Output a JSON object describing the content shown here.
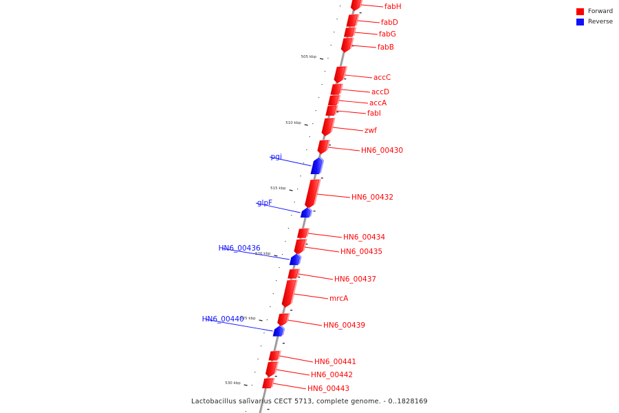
{
  "legend": [
    {
      "label": "Forward",
      "color": "#ff0000"
    },
    {
      "label": "Reverse",
      "color": "#1010ff"
    }
  ],
  "colors": {
    "forward": "#ff0000",
    "reverse": "#1010ff",
    "backbone": "#888888",
    "tick": "#222222"
  },
  "footer": "Lactobacillus salivarius CECT 5713, complete genome. - 0..1828169",
  "ticks": [
    {
      "kbp": 505,
      "label": "505 kbp"
    },
    {
      "kbp": 510,
      "label": "510 kbp"
    },
    {
      "kbp": 515,
      "label": "515 kbp"
    },
    {
      "kbp": 520,
      "label": "520 kbp"
    },
    {
      "kbp": 525,
      "label": "525 kbp"
    },
    {
      "kbp": 530,
      "label": "530 kbp"
    }
  ],
  "genes": [
    {
      "name": "fabH",
      "strand": "forward"
    },
    {
      "name": "fabD",
      "strand": "forward"
    },
    {
      "name": "fabG",
      "strand": "forward"
    },
    {
      "name": "fabB",
      "strand": "forward"
    },
    {
      "name": "accC",
      "strand": "forward"
    },
    {
      "name": "accD",
      "strand": "forward"
    },
    {
      "name": "accA",
      "strand": "forward"
    },
    {
      "name": "fabI",
      "strand": "forward"
    },
    {
      "name": "zwf",
      "strand": "forward"
    },
    {
      "name": "HN6_00430",
      "strand": "forward"
    },
    {
      "name": "pgi",
      "strand": "reverse"
    },
    {
      "name": "HN6_00432",
      "strand": "forward"
    },
    {
      "name": "glpF",
      "strand": "reverse"
    },
    {
      "name": "HN6_00434",
      "strand": "forward"
    },
    {
      "name": "HN6_00435",
      "strand": "forward"
    },
    {
      "name": "HN6_00436",
      "strand": "reverse"
    },
    {
      "name": "HN6_00437",
      "strand": "forward"
    },
    {
      "name": "mrcA",
      "strand": "forward"
    },
    {
      "name": "HN6_00439",
      "strand": "forward"
    },
    {
      "name": "HN6_00440",
      "strand": "reverse"
    },
    {
      "name": "HN6_00441",
      "strand": "forward"
    },
    {
      "name": "HN6_00442",
      "strand": "forward"
    },
    {
      "name": "HN6_00443",
      "strand": "forward"
    }
  ]
}
